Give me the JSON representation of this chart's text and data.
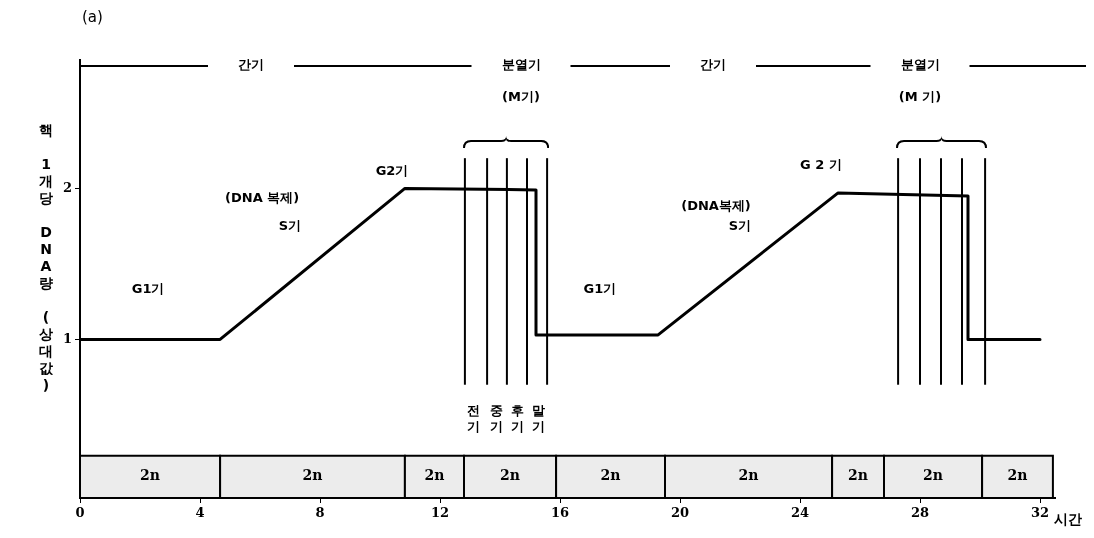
{
  "chart_data": {
    "type": "line",
    "title": "(a)",
    "xlabel": "시간",
    "ylabel": "핵 1개당 DNA량 (상대값)",
    "x": [
      0,
      4.67,
      10.83,
      15.2,
      15.2,
      19.27,
      25.27,
      29.6,
      29.6,
      32
    ],
    "values": [
      1,
      1,
      2,
      1.99,
      1.03,
      1.03,
      1.97,
      1.95,
      1,
      1
    ],
    "color": "#000000",
    "marker": "none",
    "line_style": "solid",
    "grid": false,
    "legend": false,
    "xlim": [
      0,
      32.5
    ],
    "xticks": [
      0,
      4,
      8,
      12,
      16,
      20,
      24,
      28,
      32
    ],
    "ylim": [
      -0.05,
      2.85
    ],
    "yticks": [
      1,
      2
    ],
    "ref_lines": [
      {
        "axis": "y",
        "value": 2.81
      },
      {
        "axis": "x",
        "value": 12.83
      },
      {
        "axis": "x",
        "value": 13.57
      },
      {
        "axis": "x",
        "value": 14.23
      },
      {
        "axis": "x",
        "value": 14.9
      },
      {
        "axis": "x",
        "value": 15.57
      },
      {
        "axis": "x",
        "value": 27.27
      },
      {
        "axis": "x",
        "value": 28.0
      },
      {
        "axis": "x",
        "value": 28.7
      },
      {
        "axis": "x",
        "value": 29.4
      },
      {
        "axis": "x",
        "value": 30.17
      }
    ],
    "bands": [
      {
        "axis": "x",
        "from": 0,
        "to": 4.67,
        "label": "2n",
        "color": "#ececec"
      },
      {
        "axis": "x",
        "from": 4.67,
        "to": 10.83,
        "label": "2n",
        "color": "#ececec"
      },
      {
        "axis": "x",
        "from": 10.83,
        "to": 12.8,
        "label": "2n",
        "color": "#ececec"
      },
      {
        "axis": "x",
        "from": 12.8,
        "to": 15.87,
        "label": "2n",
        "color": "#ececec"
      },
      {
        "axis": "x",
        "from": 15.87,
        "to": 19.5,
        "label": "2n",
        "color": "#ececec"
      },
      {
        "axis": "x",
        "from": 19.5,
        "to": 25.07,
        "label": "2n",
        "color": "#ececec"
      },
      {
        "axis": "x",
        "from": 25.07,
        "to": 26.8,
        "label": "2n",
        "color": "#ececec"
      },
      {
        "axis": "x",
        "from": 26.8,
        "to": 30.07,
        "label": "2n",
        "color": "#ececec"
      },
      {
        "axis": "x",
        "from": 30.07,
        "to": 32.43,
        "label": "2n",
        "color": "#ececec"
      }
    ],
    "annotations": [
      "간기",
      "분열기",
      "(M기)",
      "간기",
      "분열기",
      "(M 기)",
      "G1기",
      "(DNA 복제)",
      "S기",
      "G2기",
      "G1기",
      "(DNA복제)",
      "S기",
      "G 2 기",
      "전기",
      "중기",
      "후기",
      "말기"
    ]
  }
}
